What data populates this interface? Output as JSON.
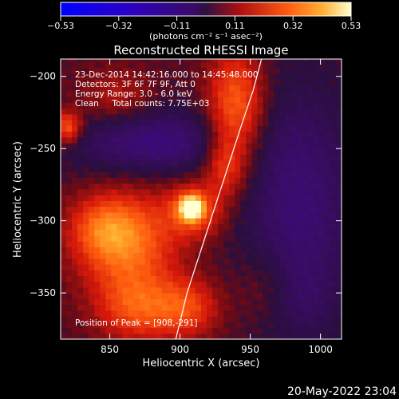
{
  "chart_data": {
    "type": "heatmap",
    "title": "Reconstructed RHESSI Image",
    "xlabel": "Heliocentric X (arcsec)",
    "ylabel": "Heliocentric Y (arcsec)",
    "xlim": [
      815,
      1015
    ],
    "ylim": [
      -382,
      -188
    ],
    "x_ticks": [
      850,
      900,
      950,
      1000
    ],
    "y_ticks": [
      -200,
      -250,
      -300,
      -350
    ],
    "x_tick_labels": [
      "850",
      "900",
      "950",
      "1000"
    ],
    "y_tick_labels": [
      "−200",
      "−250",
      "−300",
      "−350"
    ],
    "colorbar": {
      "range": [
        -0.53,
        0.53
      ],
      "tick_labels": [
        "−0.53",
        "−0.32",
        "−0.11",
        "0.11",
        "0.32",
        "0.53"
      ],
      "units_line": "(photons cm⁻² s⁻¹ asec⁻²)"
    },
    "annotations": [
      "23-Dec-2014 14:42:16.000 to 14:45:48.000",
      "Detectors: 3F 6F 7F 9F, Att 0",
      "Energy Range: 3.0 - 6.0 keV",
      "Clean     Total counts: 7.75E+03"
    ],
    "peak_text": "Position of Peak = [908,-291]",
    "peak": {
      "x": 908,
      "y": -291
    },
    "grid": false,
    "components": [
      {
        "x": 908,
        "y": -291,
        "sx": 5.5,
        "sy": 5.5,
        "amp": 0.53
      },
      {
        "x": 910,
        "y": -292,
        "sx": 14,
        "sy": 13,
        "amp": 0.22
      },
      {
        "x": 940,
        "y": -222,
        "sx": 14,
        "sy": 28,
        "amp": 0.26
      },
      {
        "x": 932,
        "y": -262,
        "sx": 10,
        "sy": 14,
        "amp": 0.15
      },
      {
        "x": 862,
        "y": -315,
        "sx": 24,
        "sy": 24,
        "amp": 0.27
      },
      {
        "x": 845,
        "y": -305,
        "sx": 16,
        "sy": 14,
        "amp": 0.14
      },
      {
        "x": 870,
        "y": -360,
        "sx": 20,
        "sy": 16,
        "amp": 0.2
      },
      {
        "x": 905,
        "y": -360,
        "sx": 16,
        "sy": 14,
        "amp": 0.18
      },
      {
        "x": 960,
        "y": -345,
        "sx": 14,
        "sy": 18,
        "amp": 0.06
      },
      {
        "x": 855,
        "y": -215,
        "sx": 18,
        "sy": 14,
        "amp": 0.1
      },
      {
        "x": 820,
        "y": -235,
        "sx": 7,
        "sy": 8,
        "amp": 0.24
      },
      {
        "x": 880,
        "y": -245,
        "sx": 40,
        "sy": 16,
        "amp": -0.18
      },
      {
        "x": 985,
        "y": -290,
        "sx": 28,
        "sy": 60,
        "amp": -0.16
      },
      {
        "x": 990,
        "y": -355,
        "sx": 14,
        "sy": 16,
        "amp": -0.04
      }
    ],
    "limb_curve": [
      [
        897,
        -382
      ],
      [
        905,
        -350
      ],
      [
        915,
        -320
      ],
      [
        925,
        -290
      ],
      [
        935,
        -260
      ],
      [
        945,
        -230
      ],
      [
        952,
        -210
      ],
      [
        958,
        -188
      ]
    ]
  },
  "footer": {
    "timestamp": "20-May-2022 23:04"
  }
}
